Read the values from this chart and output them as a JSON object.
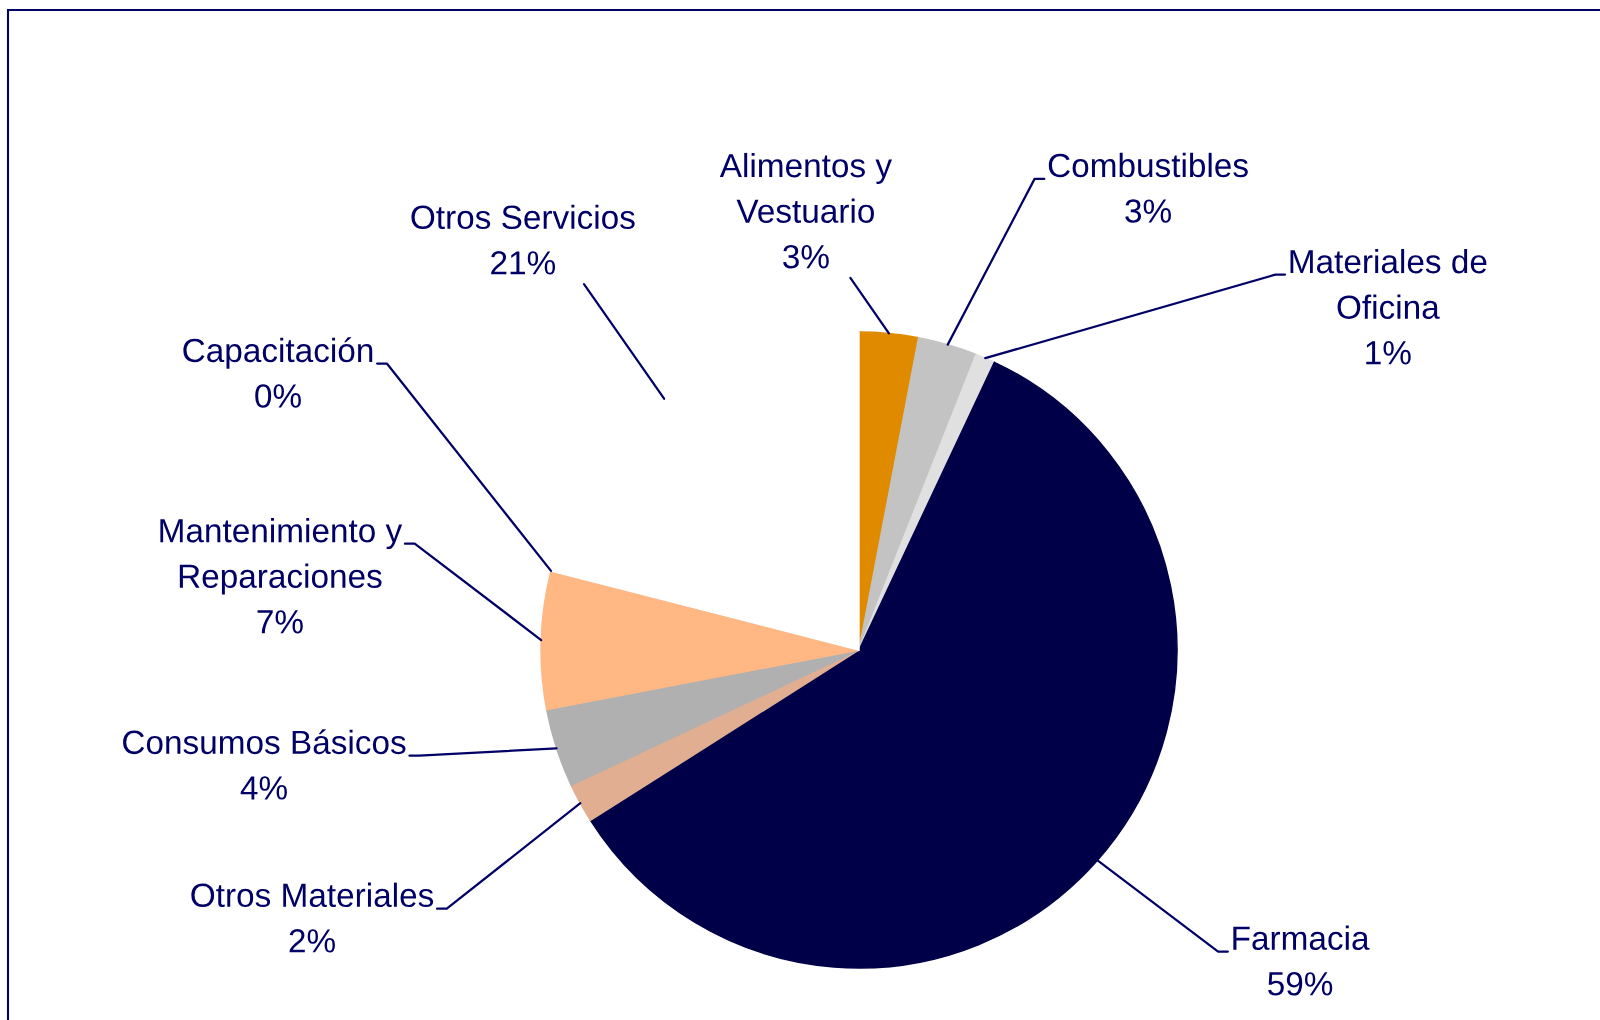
{
  "chart_data": {
    "type": "pie",
    "categories": [
      "Alimentos y Vestuario",
      "Combustibles",
      "Materiales de Oficina",
      "Farmacia",
      "Otros Materiales",
      "Consumos Básicos",
      "Mantenimiento y Reparaciones",
      "Capacitación",
      "Otros Servicios"
    ],
    "values": [
      3,
      3,
      1,
      59,
      2,
      4,
      7,
      0,
      21
    ],
    "value_labels": [
      "3%",
      "3%",
      "1%",
      "59%",
      "2%",
      "4%",
      "7%",
      "0%",
      "21%"
    ],
    "colors": [
      "#e08a00",
      "#c3c3c3",
      "#e0e0e0",
      "#000048",
      "#e2ae92",
      "#b0b0b0",
      "#ffb784",
      "#d9d9d9",
      "#ffffff"
    ]
  }
}
